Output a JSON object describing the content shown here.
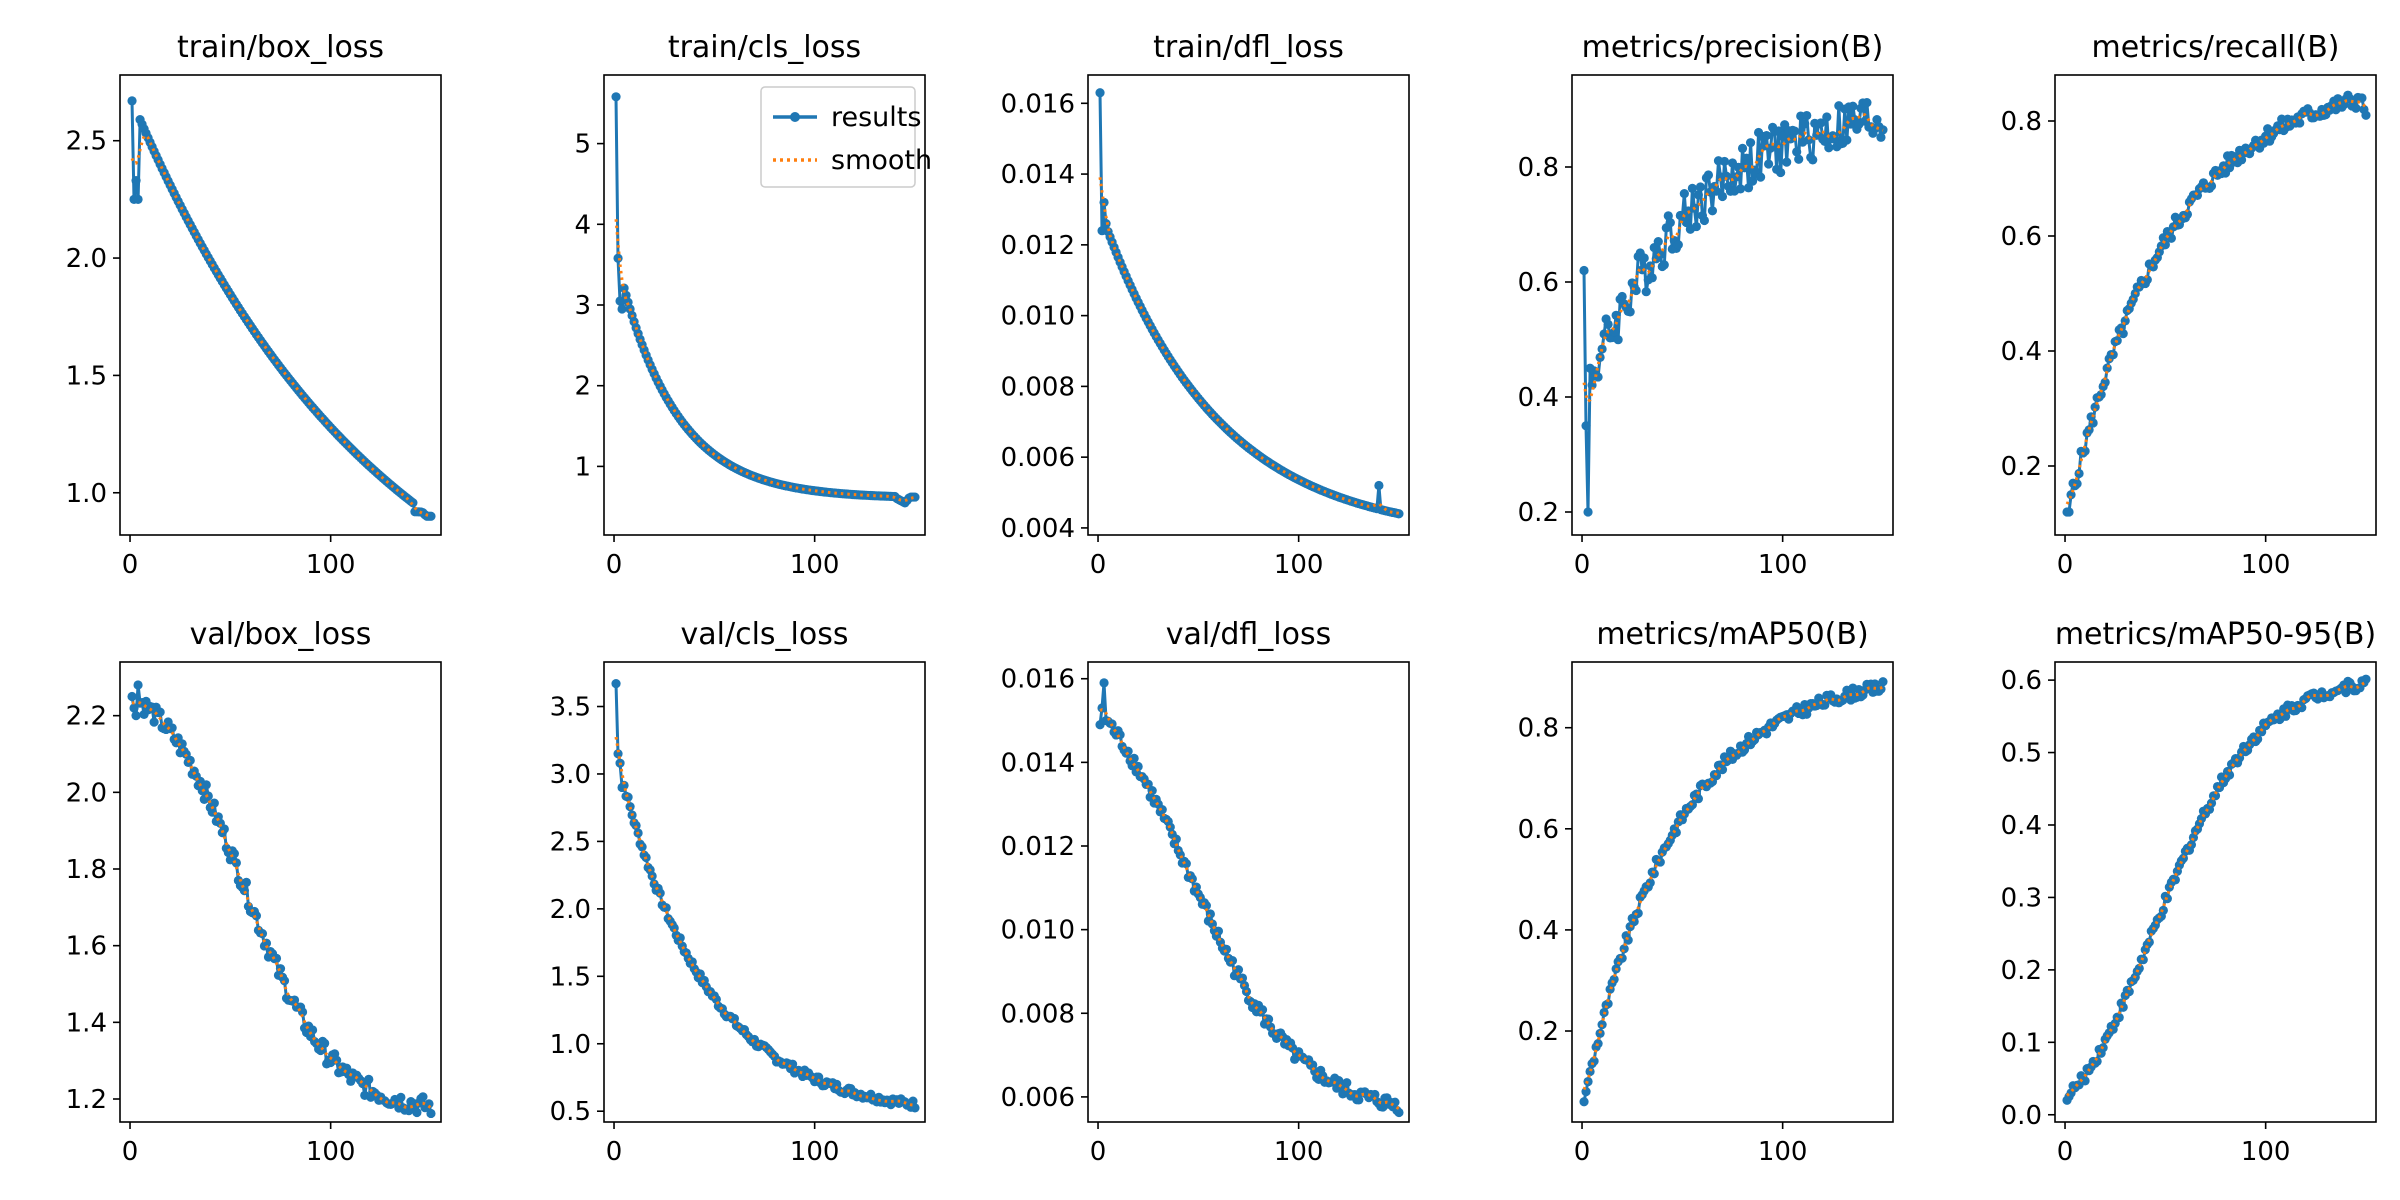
{
  "colors": {
    "results": "#1f77b4",
    "smooth": "#ff7f0e",
    "axes": "#000000",
    "background": "#ffffff"
  },
  "chart_data": [
    {
      "id": "train_box_loss",
      "type": "line",
      "title": "train/box_loss",
      "xlim": [
        -5,
        155
      ],
      "ylim": [
        0.82,
        2.78
      ],
      "xticks": [
        {
          "value": 0,
          "label": "0"
        },
        {
          "value": 100,
          "label": "100"
        }
      ],
      "yticks": [
        {
          "value": 1.0,
          "label": "1.0"
        },
        {
          "value": 1.5,
          "label": "1.5"
        },
        {
          "value": 2.0,
          "label": "2.0"
        },
        {
          "value": 2.5,
          "label": "2.5"
        }
      ],
      "legend": null,
      "series": [
        {
          "name": "results",
          "gen": "curve",
          "n": 150,
          "start": 2.67,
          "end": 0.9,
          "shape": "decay",
          "rate": 1.2,
          "head": [
            2.67,
            2.25,
            2.33,
            2.25
          ],
          "drop_at": 141,
          "drop_to": 0.95,
          "noise": 0.0,
          "seed": 1
        }
      ]
    },
    {
      "id": "train_cls_loss",
      "type": "line",
      "title": "train/cls_loss",
      "xlim": [
        -5,
        155
      ],
      "ylim": [
        0.15,
        5.85
      ],
      "xticks": [
        {
          "value": 0,
          "label": "0"
        },
        {
          "value": 100,
          "label": "100"
        }
      ],
      "yticks": [
        {
          "value": 1,
          "label": "1"
        },
        {
          "value": 2,
          "label": "2"
        },
        {
          "value": 3,
          "label": "3"
        },
        {
          "value": 4,
          "label": "4"
        },
        {
          "value": 5,
          "label": "5"
        }
      ],
      "legend": {
        "location": "upper right",
        "entries": [
          "results",
          "smooth"
        ]
      },
      "series": [
        {
          "name": "results",
          "gen": "curve",
          "n": 150,
          "start": 3.6,
          "end": 0.62,
          "shape": "decay",
          "rate": 5.2,
          "head": [
            5.58,
            3.58,
            3.05,
            2.95
          ],
          "drop_at": 140,
          "drop_to": 0.42,
          "noise": 0.0,
          "seed": 2
        }
      ]
    },
    {
      "id": "train_dfl_loss",
      "type": "line",
      "title": "train/dfl_loss",
      "xlim": [
        -5,
        155
      ],
      "ylim": [
        0.0038,
        0.0168
      ],
      "xticks": [
        {
          "value": 0,
          "label": "0"
        },
        {
          "value": 100,
          "label": "100"
        }
      ],
      "yticks": [
        {
          "value": 0.004,
          "label": "0.004"
        },
        {
          "value": 0.006,
          "label": "0.006"
        },
        {
          "value": 0.008,
          "label": "0.008"
        },
        {
          "value": 0.01,
          "label": "0.010"
        },
        {
          "value": 0.012,
          "label": "0.012"
        },
        {
          "value": 0.014,
          "label": "0.014"
        },
        {
          "value": 0.016,
          "label": "0.016"
        }
      ],
      "legend": null,
      "series": [
        {
          "name": "results",
          "gen": "curve",
          "n": 150,
          "start": 0.013,
          "end": 0.0044,
          "shape": "decay",
          "rate": 2.6,
          "head": [
            0.0163,
            0.0124,
            0.0132,
            0.0126
          ],
          "spike": [
            139,
            0.0052
          ],
          "noise": 0.0,
          "seed": 3
        }
      ]
    },
    {
      "id": "metrics_precision",
      "type": "line",
      "title": "metrics/precision(B)",
      "xlim": [
        -5,
        155
      ],
      "ylim": [
        0.16,
        0.96
      ],
      "xticks": [
        {
          "value": 0,
          "label": "0"
        },
        {
          "value": 100,
          "label": "100"
        }
      ],
      "yticks": [
        {
          "value": 0.2,
          "label": "0.2"
        },
        {
          "value": 0.4,
          "label": "0.4"
        },
        {
          "value": 0.6,
          "label": "0.6"
        },
        {
          "value": 0.8,
          "label": "0.8"
        }
      ],
      "legend": null,
      "series": [
        {
          "name": "results",
          "gen": "curve",
          "n": 150,
          "start": 0.4,
          "end": 0.885,
          "shape": "rise",
          "rate": 2.8,
          "head": [
            0.62,
            0.35,
            0.2,
            0.45
          ],
          "noise": 0.045,
          "seed": 4
        }
      ]
    },
    {
      "id": "metrics_recall",
      "type": "line",
      "title": "metrics/recall(B)",
      "xlim": [
        -5,
        155
      ],
      "ylim": [
        0.08,
        0.88
      ],
      "xticks": [
        {
          "value": 0,
          "label": "0"
        },
        {
          "value": 100,
          "label": "100"
        }
      ],
      "yticks": [
        {
          "value": 0.2,
          "label": "0.2"
        },
        {
          "value": 0.4,
          "label": "0.4"
        },
        {
          "value": 0.6,
          "label": "0.6"
        },
        {
          "value": 0.8,
          "label": "0.8"
        }
      ],
      "legend": null,
      "series": [
        {
          "name": "results",
          "gen": "curve",
          "n": 150,
          "start": 0.11,
          "end": 0.84,
          "shape": "rise",
          "rate": 3.0,
          "head": [
            0.12,
            0.12,
            0.15,
            0.17
          ],
          "tail": [
            0.84,
            0.84,
            0.82,
            0.81
          ],
          "noise": 0.015,
          "seed": 5
        }
      ]
    },
    {
      "id": "val_box_loss",
      "type": "line",
      "title": "val/box_loss",
      "xlim": [
        -5,
        155
      ],
      "ylim": [
        1.14,
        2.34
      ],
      "xticks": [
        {
          "value": 0,
          "label": "0"
        },
        {
          "value": 100,
          "label": "100"
        }
      ],
      "yticks": [
        {
          "value": 1.2,
          "label": "1.2"
        },
        {
          "value": 1.4,
          "label": "1.4"
        },
        {
          "value": 1.6,
          "label": "1.6"
        },
        {
          "value": 1.8,
          "label": "1.8"
        },
        {
          "value": 2.0,
          "label": "2.0"
        },
        {
          "value": 2.2,
          "label": "2.2"
        }
      ],
      "legend": null,
      "series": [
        {
          "name": "results",
          "gen": "curve",
          "n": 150,
          "start": 2.25,
          "end": 1.18,
          "shape": "sigmoid-down",
          "mid": 0.38,
          "steep": 7,
          "head": [
            2.25,
            2.22,
            2.2,
            2.28
          ],
          "noise": 0.025,
          "seed": 6
        }
      ]
    },
    {
      "id": "val_cls_loss",
      "type": "line",
      "title": "val/cls_loss",
      "xlim": [
        -5,
        155
      ],
      "ylim": [
        0.42,
        3.83
      ],
      "xticks": [
        {
          "value": 0,
          "label": "0"
        },
        {
          "value": 100,
          "label": "100"
        }
      ],
      "yticks": [
        {
          "value": 0.5,
          "label": "0.5"
        },
        {
          "value": 1.0,
          "label": "1.0"
        },
        {
          "value": 1.5,
          "label": "1.5"
        },
        {
          "value": 2.0,
          "label": "2.0"
        },
        {
          "value": 2.5,
          "label": "2.5"
        },
        {
          "value": 3.0,
          "label": "3.0"
        },
        {
          "value": 3.5,
          "label": "3.5"
        }
      ],
      "legend": null,
      "series": [
        {
          "name": "results",
          "gen": "curve",
          "n": 150,
          "start": 3.15,
          "end": 0.55,
          "shape": "decay",
          "rate": 3.4,
          "head": [
            3.67,
            3.15,
            3.08,
            2.9
          ],
          "noise": 0.03,
          "seed": 7
        }
      ]
    },
    {
      "id": "val_dfl_loss",
      "type": "line",
      "title": "val/dfl_loss",
      "xlim": [
        -5,
        155
      ],
      "ylim": [
        0.0054,
        0.0164
      ],
      "xticks": [
        {
          "value": 0,
          "label": "0"
        },
        {
          "value": 100,
          "label": "100"
        }
      ],
      "yticks": [
        {
          "value": 0.006,
          "label": "0.006"
        },
        {
          "value": 0.008,
          "label": "0.008"
        },
        {
          "value": 0.01,
          "label": "0.010"
        },
        {
          "value": 0.012,
          "label": "0.012"
        },
        {
          "value": 0.014,
          "label": "0.014"
        },
        {
          "value": 0.016,
          "label": "0.016"
        }
      ],
      "legend": null,
      "series": [
        {
          "name": "results",
          "gen": "curve",
          "n": 150,
          "start": 0.0152,
          "end": 0.0058,
          "shape": "sigmoid-down",
          "mid": 0.3,
          "steep": 5.5,
          "head": [
            0.0149,
            0.0153,
            0.0159,
            0.015
          ],
          "noise": 0.00018,
          "seed": 8
        }
      ]
    },
    {
      "id": "metrics_map50",
      "type": "line",
      "title": "metrics/mAP50(B)",
      "xlim": [
        -5,
        155
      ],
      "ylim": [
        0.02,
        0.93
      ],
      "xticks": [
        {
          "value": 0,
          "label": "0"
        },
        {
          "value": 100,
          "label": "100"
        }
      ],
      "yticks": [
        {
          "value": 0.2,
          "label": "0.2"
        },
        {
          "value": 0.4,
          "label": "0.4"
        },
        {
          "value": 0.6,
          "label": "0.6"
        },
        {
          "value": 0.8,
          "label": "0.8"
        }
      ],
      "legend": null,
      "series": [
        {
          "name": "results",
          "gen": "curve",
          "n": 150,
          "start": 0.06,
          "end": 0.88,
          "shape": "rise",
          "rate": 3.3,
          "head": [
            0.06,
            0.08,
            0.1,
            0.12
          ],
          "noise": 0.012,
          "seed": 9
        }
      ]
    },
    {
      "id": "metrics_map50_95",
      "type": "line",
      "title": "metrics/mAP50-95(B)",
      "xlim": [
        -5,
        155
      ],
      "ylim": [
        -0.01,
        0.625
      ],
      "xticks": [
        {
          "value": 0,
          "label": "0"
        },
        {
          "value": 100,
          "label": "100"
        }
      ],
      "yticks": [
        {
          "value": 0.0,
          "label": "0.0"
        },
        {
          "value": 0.1,
          "label": "0.1"
        },
        {
          "value": 0.2,
          "label": "0.2"
        },
        {
          "value": 0.3,
          "label": "0.3"
        },
        {
          "value": 0.4,
          "label": "0.4"
        },
        {
          "value": 0.5,
          "label": "0.5"
        },
        {
          "value": 0.6,
          "label": "0.6"
        }
      ],
      "legend": null,
      "series": [
        {
          "name": "results",
          "gen": "curve",
          "n": 150,
          "start": 0.02,
          "end": 0.595,
          "shape": "sigmoid-up",
          "mid": 0.3,
          "steep": 6.0,
          "head": [
            0.02,
            0.025,
            0.03,
            0.04
          ],
          "noise": 0.008,
          "seed": 10
        }
      ]
    }
  ]
}
